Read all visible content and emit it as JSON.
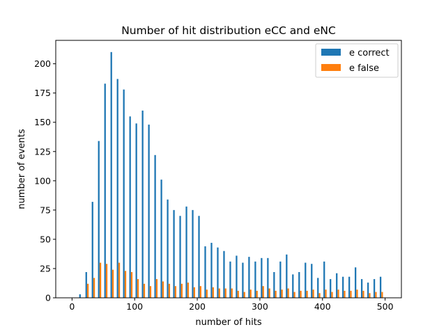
{
  "chart_data": {
    "type": "bar",
    "title": "Number of hit distribution eCC and eNC",
    "xlabel": "number of hits",
    "ylabel": "number of events",
    "xlim": [
      -26,
      526
    ],
    "ylim": [
      0,
      220
    ],
    "xticks": [
      0,
      100,
      200,
      300,
      400,
      500
    ],
    "yticks": [
      0,
      25,
      50,
      75,
      100,
      125,
      150,
      175,
      200
    ],
    "legend_position": "upper-right",
    "bin_width": 10,
    "series": [
      {
        "name": "e correct",
        "color": "#1f77b4",
        "x": [
          14,
          24,
          34,
          44,
          54,
          64,
          74,
          84,
          94,
          104,
          114,
          124,
          134,
          144,
          154,
          164,
          174,
          184,
          194,
          204,
          214,
          224,
          234,
          244,
          254,
          264,
          274,
          284,
          294,
          304,
          314,
          324,
          334,
          344,
          354,
          364,
          374,
          384,
          394,
          404,
          414,
          424,
          434,
          444,
          454,
          464,
          474,
          484,
          494
        ],
        "values": [
          3,
          22,
          82,
          134,
          183,
          210,
          187,
          178,
          155,
          149,
          160,
          148,
          122,
          101,
          84,
          75,
          70,
          78,
          75,
          70,
          44,
          47,
          43,
          40,
          31,
          36,
          30,
          35,
          31,
          34,
          34,
          22,
          31,
          37,
          20,
          22,
          30,
          29,
          17,
          31,
          16,
          21,
          18,
          18,
          26,
          16,
          13,
          16,
          18
        ]
      },
      {
        "name": "e false",
        "color": "#ff7f0e",
        "x": [
          14,
          24,
          34,
          44,
          54,
          64,
          74,
          84,
          94,
          104,
          114,
          124,
          134,
          144,
          154,
          164,
          174,
          184,
          194,
          204,
          214,
          224,
          234,
          244,
          254,
          264,
          274,
          284,
          294,
          304,
          314,
          324,
          334,
          344,
          354,
          364,
          374,
          384,
          394,
          404,
          414,
          424,
          434,
          444,
          454,
          464,
          474,
          484,
          494
        ],
        "values": [
          0,
          12,
          17,
          30,
          29,
          24,
          30,
          23,
          22,
          16,
          12,
          10,
          16,
          14,
          12,
          10,
          12,
          13,
          9,
          10,
          7,
          9,
          8,
          8,
          8,
          6,
          5,
          7,
          6,
          10,
          8,
          6,
          7,
          8,
          5,
          6,
          6,
          7,
          4,
          7,
          5,
          7,
          6,
          6,
          7,
          6,
          4,
          5,
          5
        ]
      }
    ]
  }
}
